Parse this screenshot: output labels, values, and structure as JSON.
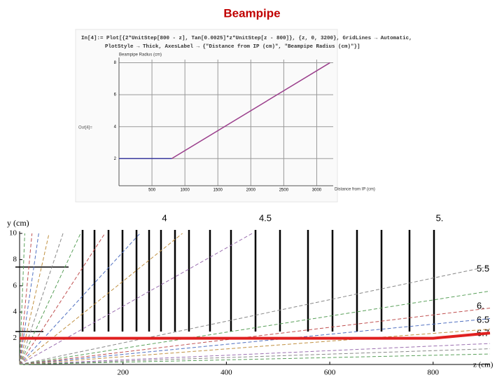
{
  "title": "Beampipe",
  "chart_data": [
    {
      "type": "line",
      "code": [
        "In[4]:= Plot[{2*UnitStep[800 - z], Tan[0.0025]*z*UnitStep[z - 800]}, {z, 0, 3200}, GridLines → Automatic,",
        "PlotStyle → Thick, AxesLabel → {\"Distance from IP (cm)\", \"Beampipe Radius (cm)\"}]"
      ],
      "output_label": "Out[4]=",
      "x_label": "Distance from IP (cm)",
      "y_label": "Beampipe Radius (cm)",
      "xlim": [
        0,
        3250
      ],
      "ylim": [
        0.3,
        8.2
      ],
      "xticks": [
        500,
        1000,
        1500,
        2000,
        2500,
        3000
      ],
      "yticks": [
        2,
        4,
        6,
        8
      ],
      "grid": true,
      "series": [
        {
          "color": "#3b3b9e",
          "x": [
            0,
            800
          ],
          "values": [
            2,
            2
          ]
        },
        {
          "color": "#9b3f8c",
          "x": [
            800,
            3200
          ],
          "values": [
            2,
            8
          ]
        }
      ]
    },
    {
      "type": "line",
      "x_label": "z (cm)",
      "y_label": "y (cm)",
      "xlim": [
        0,
        910
      ],
      "ylim": [
        0,
        10
      ],
      "xticks": [
        200,
        400,
        600,
        800
      ],
      "yticks": [
        2,
        4,
        6,
        8,
        10
      ],
      "grid": false,
      "annotations": [
        "4",
        "4.5",
        "5.",
        "5.5",
        "6.",
        "6.5",
        "6.7"
      ],
      "series": [
        {
          "color": "#5aa05a",
          "dashed": true,
          "x": [
            0,
            10
          ],
          "values": [
            0,
            10
          ]
        },
        {
          "color": "#c05050",
          "dashed": true,
          "x": [
            0,
            24
          ],
          "values": [
            0,
            10
          ]
        },
        {
          "color": "#5070c0",
          "dashed": true,
          "x": [
            0,
            37
          ],
          "values": [
            0,
            10
          ]
        },
        {
          "color": "#c09040",
          "dashed": true,
          "x": [
            0,
            57
          ],
          "values": [
            0,
            10
          ]
        },
        {
          "color": "#888888",
          "dashed": true,
          "x": [
            0,
            84
          ],
          "values": [
            0,
            10
          ]
        },
        {
          "color": "#5aa05a",
          "dashed": true,
          "x": [
            0,
            118
          ],
          "values": [
            0,
            10
          ]
        },
        {
          "color": "#c05050",
          "dashed": true,
          "x": [
            0,
            165
          ],
          "values": [
            0,
            10
          ]
        },
        {
          "color": "#5070c0",
          "dashed": true,
          "x": [
            0,
            233
          ],
          "values": [
            0,
            10
          ]
        },
        {
          "color": "#c09040",
          "dashed": true,
          "x": [
            0,
            315
          ],
          "values": [
            0,
            10
          ]
        },
        {
          "color": "#9b6fb0",
          "dashed": true,
          "x": [
            0,
            450
          ],
          "values": [
            0,
            10
          ]
        },
        {
          "color": "#888888",
          "dashed": true,
          "x": [
            0,
            910
          ],
          "values": [
            0,
            7.5
          ]
        },
        {
          "color": "#5aa05a",
          "dashed": true,
          "x": [
            0,
            910
          ],
          "values": [
            0,
            5.6
          ]
        },
        {
          "color": "#c05050",
          "dashed": true,
          "x": [
            0,
            910
          ],
          "values": [
            0,
            4.3
          ]
        },
        {
          "color": "#5070c0",
          "dashed": true,
          "x": [
            0,
            910
          ],
          "values": [
            0,
            3.5
          ]
        },
        {
          "color": "#c09040",
          "dashed": true,
          "x": [
            0,
            910
          ],
          "values": [
            0,
            2.7
          ]
        },
        {
          "color": "#9b6fb0",
          "dashed": true,
          "x": [
            0,
            910
          ],
          "values": [
            0,
            1.6
          ]
        },
        {
          "color": "#888888",
          "dashed": true,
          "x": [
            0,
            910
          ],
          "values": [
            0,
            1.2
          ]
        },
        {
          "color": "#5aa05a",
          "dashed": true,
          "x": [
            0,
            910
          ],
          "values": [
            0,
            0.8
          ]
        },
        {
          "color": "#e02020",
          "width": 4,
          "x": [
            0,
            800,
            910
          ],
          "values": [
            2,
            2,
            2.4
          ]
        }
      ]
    }
  ]
}
